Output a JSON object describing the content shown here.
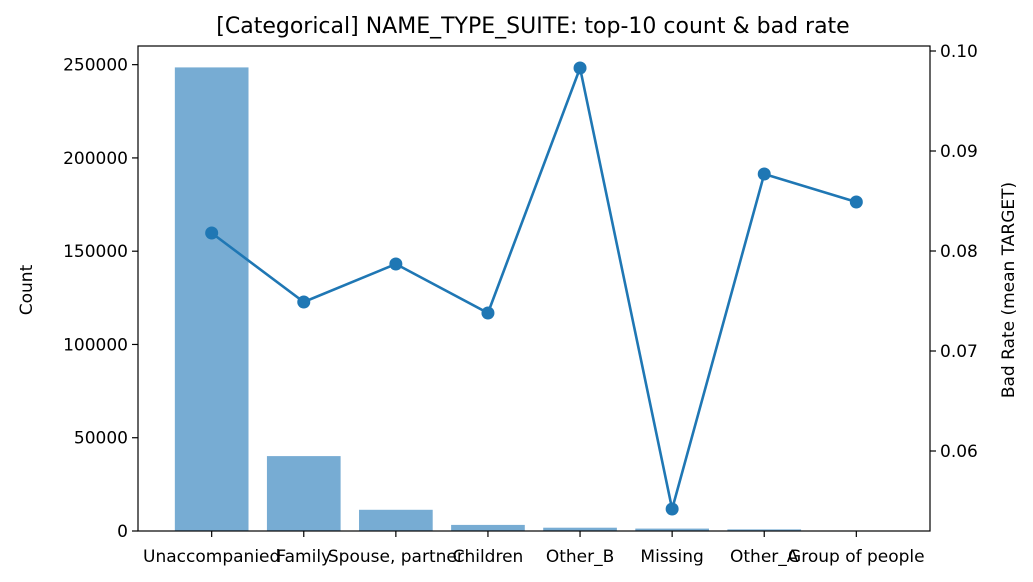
{
  "chart_data": {
    "type": "bar+line",
    "title": "[Categorical] NAME_TYPE_SUITE: top-10 count & bad rate",
    "xlabel": "",
    "ylabel_left": "Count",
    "ylabel_right": "Bad Rate (mean TARGET)",
    "categories": [
      "Unaccompanied",
      "Family",
      "Spouse, partner",
      "Children",
      "Other_B",
      "Missing",
      "Other_A",
      "Group of people"
    ],
    "series": [
      {
        "kind": "bar",
        "axis": "left",
        "values": [
          248526,
          40149,
          11370,
          3267,
          1770,
          1292,
          866,
          271
        ]
      },
      {
        "kind": "line",
        "axis": "right",
        "values": [
          0.0818,
          0.0749,
          0.0787,
          0.0738,
          0.0983,
          0.0542,
          0.0877,
          0.0849
        ]
      }
    ],
    "ylim_left": [
      0,
      260000
    ],
    "yticks_left": [
      0,
      50000,
      100000,
      150000,
      200000,
      250000
    ],
    "ylim_right": [
      0.052,
      0.1005
    ],
    "yticks_right": [
      0.06,
      0.07,
      0.08,
      0.09,
      0.1
    ],
    "ytick_labels_right": [
      "0.06",
      "0.07",
      "0.08",
      "0.09",
      "0.10"
    ],
    "grid": false,
    "colors": {
      "bar": "#77acd3",
      "line": "#1f77b4"
    }
  }
}
